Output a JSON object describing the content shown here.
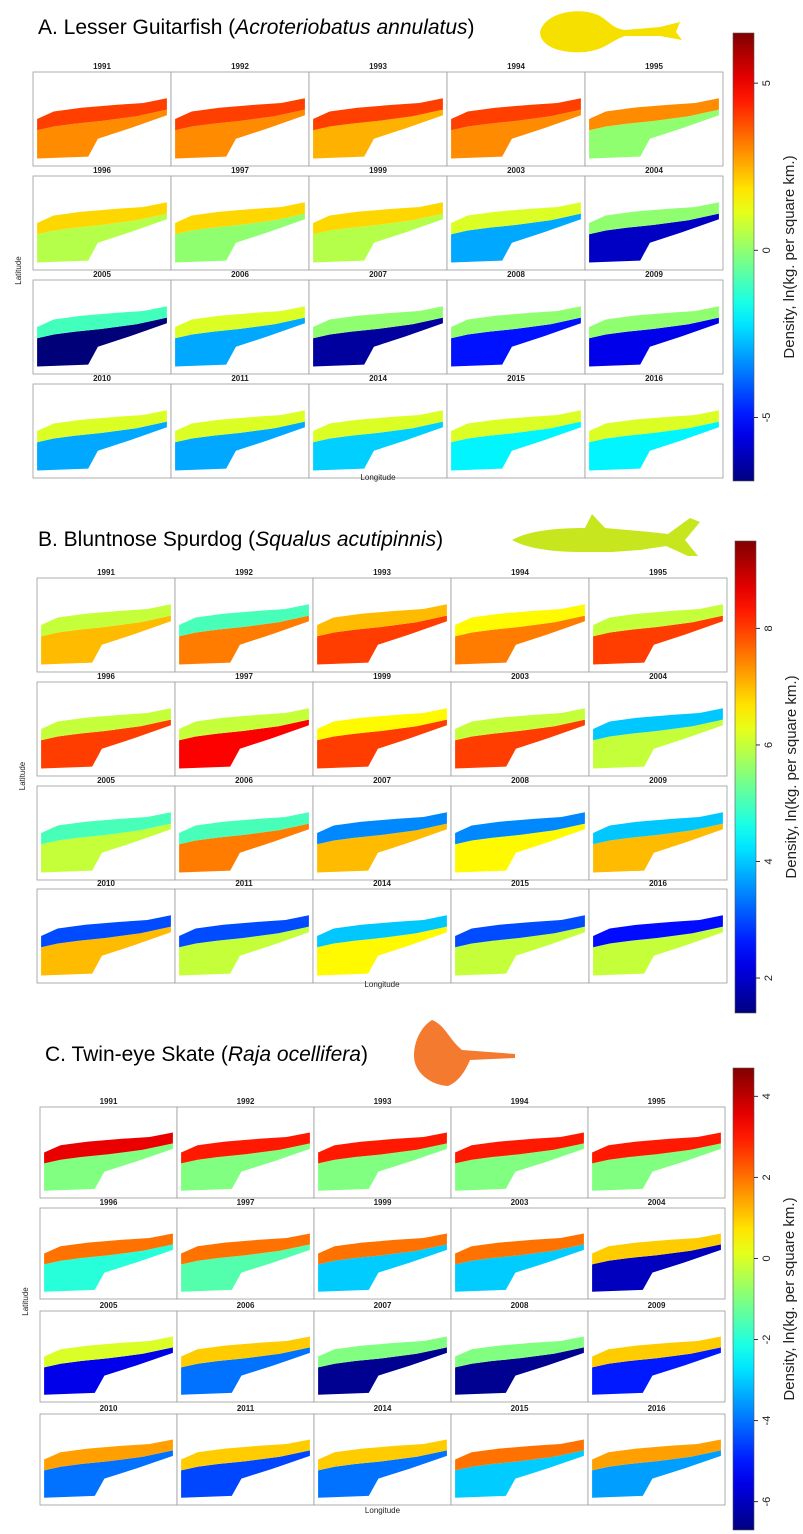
{
  "chart_data": [
    {
      "type": "heatmap",
      "title_prefix": "A. Lesser Guitarfish (",
      "species": "Acroteriobatus annulatus",
      "title_suffix": ")",
      "x_label": "Longitude",
      "y_label": "Latitude",
      "colorbar_label": "Density, ln(kg. per square km.)",
      "clim": [
        -6.9,
        6.5
      ],
      "cticks": [
        -5,
        0,
        5
      ],
      "maps": [
        {
          "year": "1991",
          "values": [
            4,
            3
          ]
        },
        {
          "year": "1992",
          "values": [
            4,
            3
          ]
        },
        {
          "year": "1993",
          "values": [
            4,
            2.5
          ]
        },
        {
          "year": "1994",
          "values": [
            4,
            3
          ]
        },
        {
          "year": "1995",
          "values": [
            3,
            0
          ]
        },
        {
          "year": "1996",
          "values": [
            2,
            0.5
          ]
        },
        {
          "year": "1997",
          "values": [
            2,
            0
          ]
        },
        {
          "year": "1999",
          "values": [
            2,
            0.5
          ]
        },
        {
          "year": "2003",
          "values": [
            1,
            -3
          ]
        },
        {
          "year": "2004",
          "values": [
            0,
            -6
          ]
        },
        {
          "year": "2005",
          "values": [
            -1,
            -7
          ]
        },
        {
          "year": "2006",
          "values": [
            1,
            -3
          ]
        },
        {
          "year": "2007",
          "values": [
            0,
            -6.5
          ]
        },
        {
          "year": "2008",
          "values": [
            0,
            -5
          ]
        },
        {
          "year": "2009",
          "values": [
            0,
            -5.5
          ]
        },
        {
          "year": "2010",
          "values": [
            1,
            -3
          ]
        },
        {
          "year": "2011",
          "values": [
            1,
            -3
          ]
        },
        {
          "year": "2014",
          "values": [
            1,
            -2.5
          ]
        },
        {
          "year": "2015",
          "values": [
            1,
            -2
          ]
        },
        {
          "year": "2016",
          "values": [
            1,
            -2
          ]
        }
      ]
    },
    {
      "type": "heatmap",
      "title_prefix": "B. Bluntnose Spurdog (",
      "species": "Squalus acutipinnis",
      "title_suffix": ")",
      "x_label": "Longitude",
      "y_label": "Latitude",
      "colorbar_label": "Density, ln(kg. per square km.)",
      "clim": [
        1.4,
        9.5
      ],
      "cticks": [
        2,
        4,
        6,
        8
      ],
      "maps": [
        {
          "year": "1991",
          "values": [
            6,
            7
          ]
        },
        {
          "year": "1992",
          "values": [
            5,
            7.5
          ]
        },
        {
          "year": "1993",
          "values": [
            7,
            8
          ]
        },
        {
          "year": "1994",
          "values": [
            6.5,
            7.5
          ]
        },
        {
          "year": "1995",
          "values": [
            6,
            8
          ]
        },
        {
          "year": "1996",
          "values": [
            6,
            8
          ]
        },
        {
          "year": "1997",
          "values": [
            6,
            8.5
          ]
        },
        {
          "year": "1999",
          "values": [
            6.5,
            8
          ]
        },
        {
          "year": "2003",
          "values": [
            6,
            8
          ]
        },
        {
          "year": "2004",
          "values": [
            4,
            6
          ]
        },
        {
          "year": "2005",
          "values": [
            5,
            6
          ]
        },
        {
          "year": "2006",
          "values": [
            5,
            7.5
          ]
        },
        {
          "year": "2007",
          "values": [
            3.5,
            7
          ]
        },
        {
          "year": "2008",
          "values": [
            3.5,
            6.5
          ]
        },
        {
          "year": "2009",
          "values": [
            4,
            7
          ]
        },
        {
          "year": "2010",
          "values": [
            3,
            7
          ]
        },
        {
          "year": "2011",
          "values": [
            3,
            6
          ]
        },
        {
          "year": "2014",
          "values": [
            4,
            6.5
          ]
        },
        {
          "year": "2015",
          "values": [
            3,
            6
          ]
        },
        {
          "year": "2016",
          "values": [
            2.5,
            6
          ]
        }
      ]
    },
    {
      "type": "heatmap",
      "title_prefix": "C. Twin-eye Skate (",
      "species": "Raja ocellifera",
      "title_suffix": ")",
      "x_label": "Longitude",
      "y_label": "Latitude",
      "colorbar_label": "Density, ln(kg. per square km.)",
      "clim": [
        -6.7,
        4.7
      ],
      "cticks": [
        -6,
        -4,
        -2,
        0,
        2,
        4
      ],
      "maps": [
        {
          "year": "1991",
          "values": [
            3.5,
            -1
          ]
        },
        {
          "year": "1992",
          "values": [
            3,
            -1
          ]
        },
        {
          "year": "1993",
          "values": [
            3,
            -1
          ]
        },
        {
          "year": "1994",
          "values": [
            3,
            -1
          ]
        },
        {
          "year": "1995",
          "values": [
            3,
            -1
          ]
        },
        {
          "year": "1996",
          "values": [
            2,
            -2
          ]
        },
        {
          "year": "1997",
          "values": [
            2,
            -1.5
          ]
        },
        {
          "year": "1999",
          "values": [
            2,
            -3
          ]
        },
        {
          "year": "2003",
          "values": [
            2,
            -3
          ]
        },
        {
          "year": "2004",
          "values": [
            1,
            -6
          ]
        },
        {
          "year": "2005",
          "values": [
            0,
            -5.5
          ]
        },
        {
          "year": "2006",
          "values": [
            1,
            -4
          ]
        },
        {
          "year": "2007",
          "values": [
            -1,
            -6.5
          ]
        },
        {
          "year": "2008",
          "values": [
            -1,
            -6.5
          ]
        },
        {
          "year": "2009",
          "values": [
            1,
            -5
          ]
        },
        {
          "year": "2010",
          "values": [
            1.5,
            -4
          ]
        },
        {
          "year": "2011",
          "values": [
            1,
            -4.5
          ]
        },
        {
          "year": "2014",
          "values": [
            1,
            -4
          ]
        },
        {
          "year": "2015",
          "values": [
            2,
            -3
          ]
        },
        {
          "year": "2016",
          "values": [
            1.5,
            -3.5
          ]
        }
      ]
    }
  ]
}
